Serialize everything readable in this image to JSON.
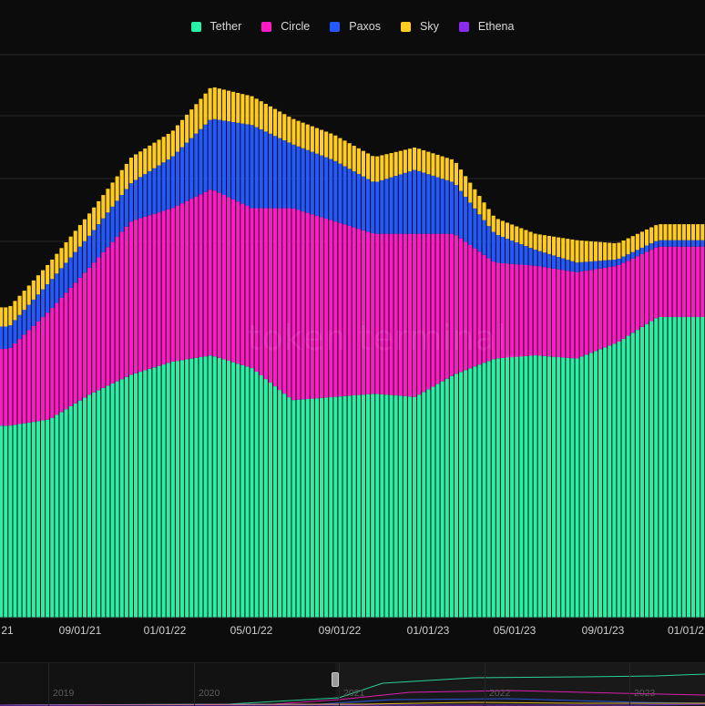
{
  "legend": [
    {
      "name": "Tether",
      "color": "#2af0a7"
    },
    {
      "name": "Circle",
      "color": "#ff19c7"
    },
    {
      "name": "Paxos",
      "color": "#2459ff"
    },
    {
      "name": "Sky",
      "color": "#ffcc1f"
    },
    {
      "name": "Ethena",
      "color": "#8c2bf0"
    }
  ],
  "watermark": "token terminal_",
  "x_tick_labels": [
    "21",
    "09/01/21",
    "01/01/22",
    "05/01/22",
    "09/01/22",
    "01/01/23",
    "05/01/23",
    "09/01/23",
    "01/01/2"
  ],
  "navigator": {
    "years": [
      "2019",
      "2020",
      "2021",
      "2022",
      "2023"
    ]
  },
  "chart_data": {
    "type": "bar",
    "stacked": true,
    "x": [
      "2021-05-01",
      "2021-07-01",
      "2021-09-01",
      "2021-11-01",
      "2022-01-01",
      "2022-03-01",
      "2022-05-01",
      "2022-07-01",
      "2022-09-01",
      "2022-11-01",
      "2023-01-01",
      "2023-03-01",
      "2023-05-01",
      "2023-07-01",
      "2023-09-01",
      "2023-11-01",
      "2024-01-01"
    ],
    "series": [
      {
        "name": "Tether",
        "color": "#2af0a7",
        "values": [
          30,
          31,
          35,
          38,
          40,
          41,
          39,
          34,
          34.5,
          35,
          34.5,
          38,
          40.5,
          41,
          40.5,
          43,
          47
        ]
      },
      {
        "name": "Circle",
        "color": "#ff19c7",
        "values": [
          12,
          17,
          20,
          24,
          24,
          26,
          25,
          30,
          27.5,
          25,
          25.5,
          22,
          15,
          14,
          13.5,
          12,
          11
        ]
      },
      {
        "name": "Paxos",
        "color": "#2459ff",
        "values": [
          3.5,
          4.5,
          5,
          6,
          8,
          11,
          13,
          10,
          9.5,
          8,
          10,
          8,
          4.5,
          2.5,
          1.5,
          1,
          1
        ]
      },
      {
        "name": "Sky",
        "color": "#ffcc1f",
        "values": [
          3,
          3,
          3.5,
          4,
          4,
          5,
          4.5,
          4,
          4,
          4,
          3.5,
          3.5,
          2.5,
          2.5,
          3.5,
          2.5,
          2.5
        ]
      },
      {
        "name": "Ethena",
        "color": "#8c2bf0",
        "values": [
          0,
          0,
          0,
          0,
          0,
          0,
          0,
          0,
          0,
          0,
          0,
          0,
          0,
          0,
          0,
          0,
          0
        ]
      }
    ],
    "grid": true,
    "legend_position": "top-center"
  }
}
